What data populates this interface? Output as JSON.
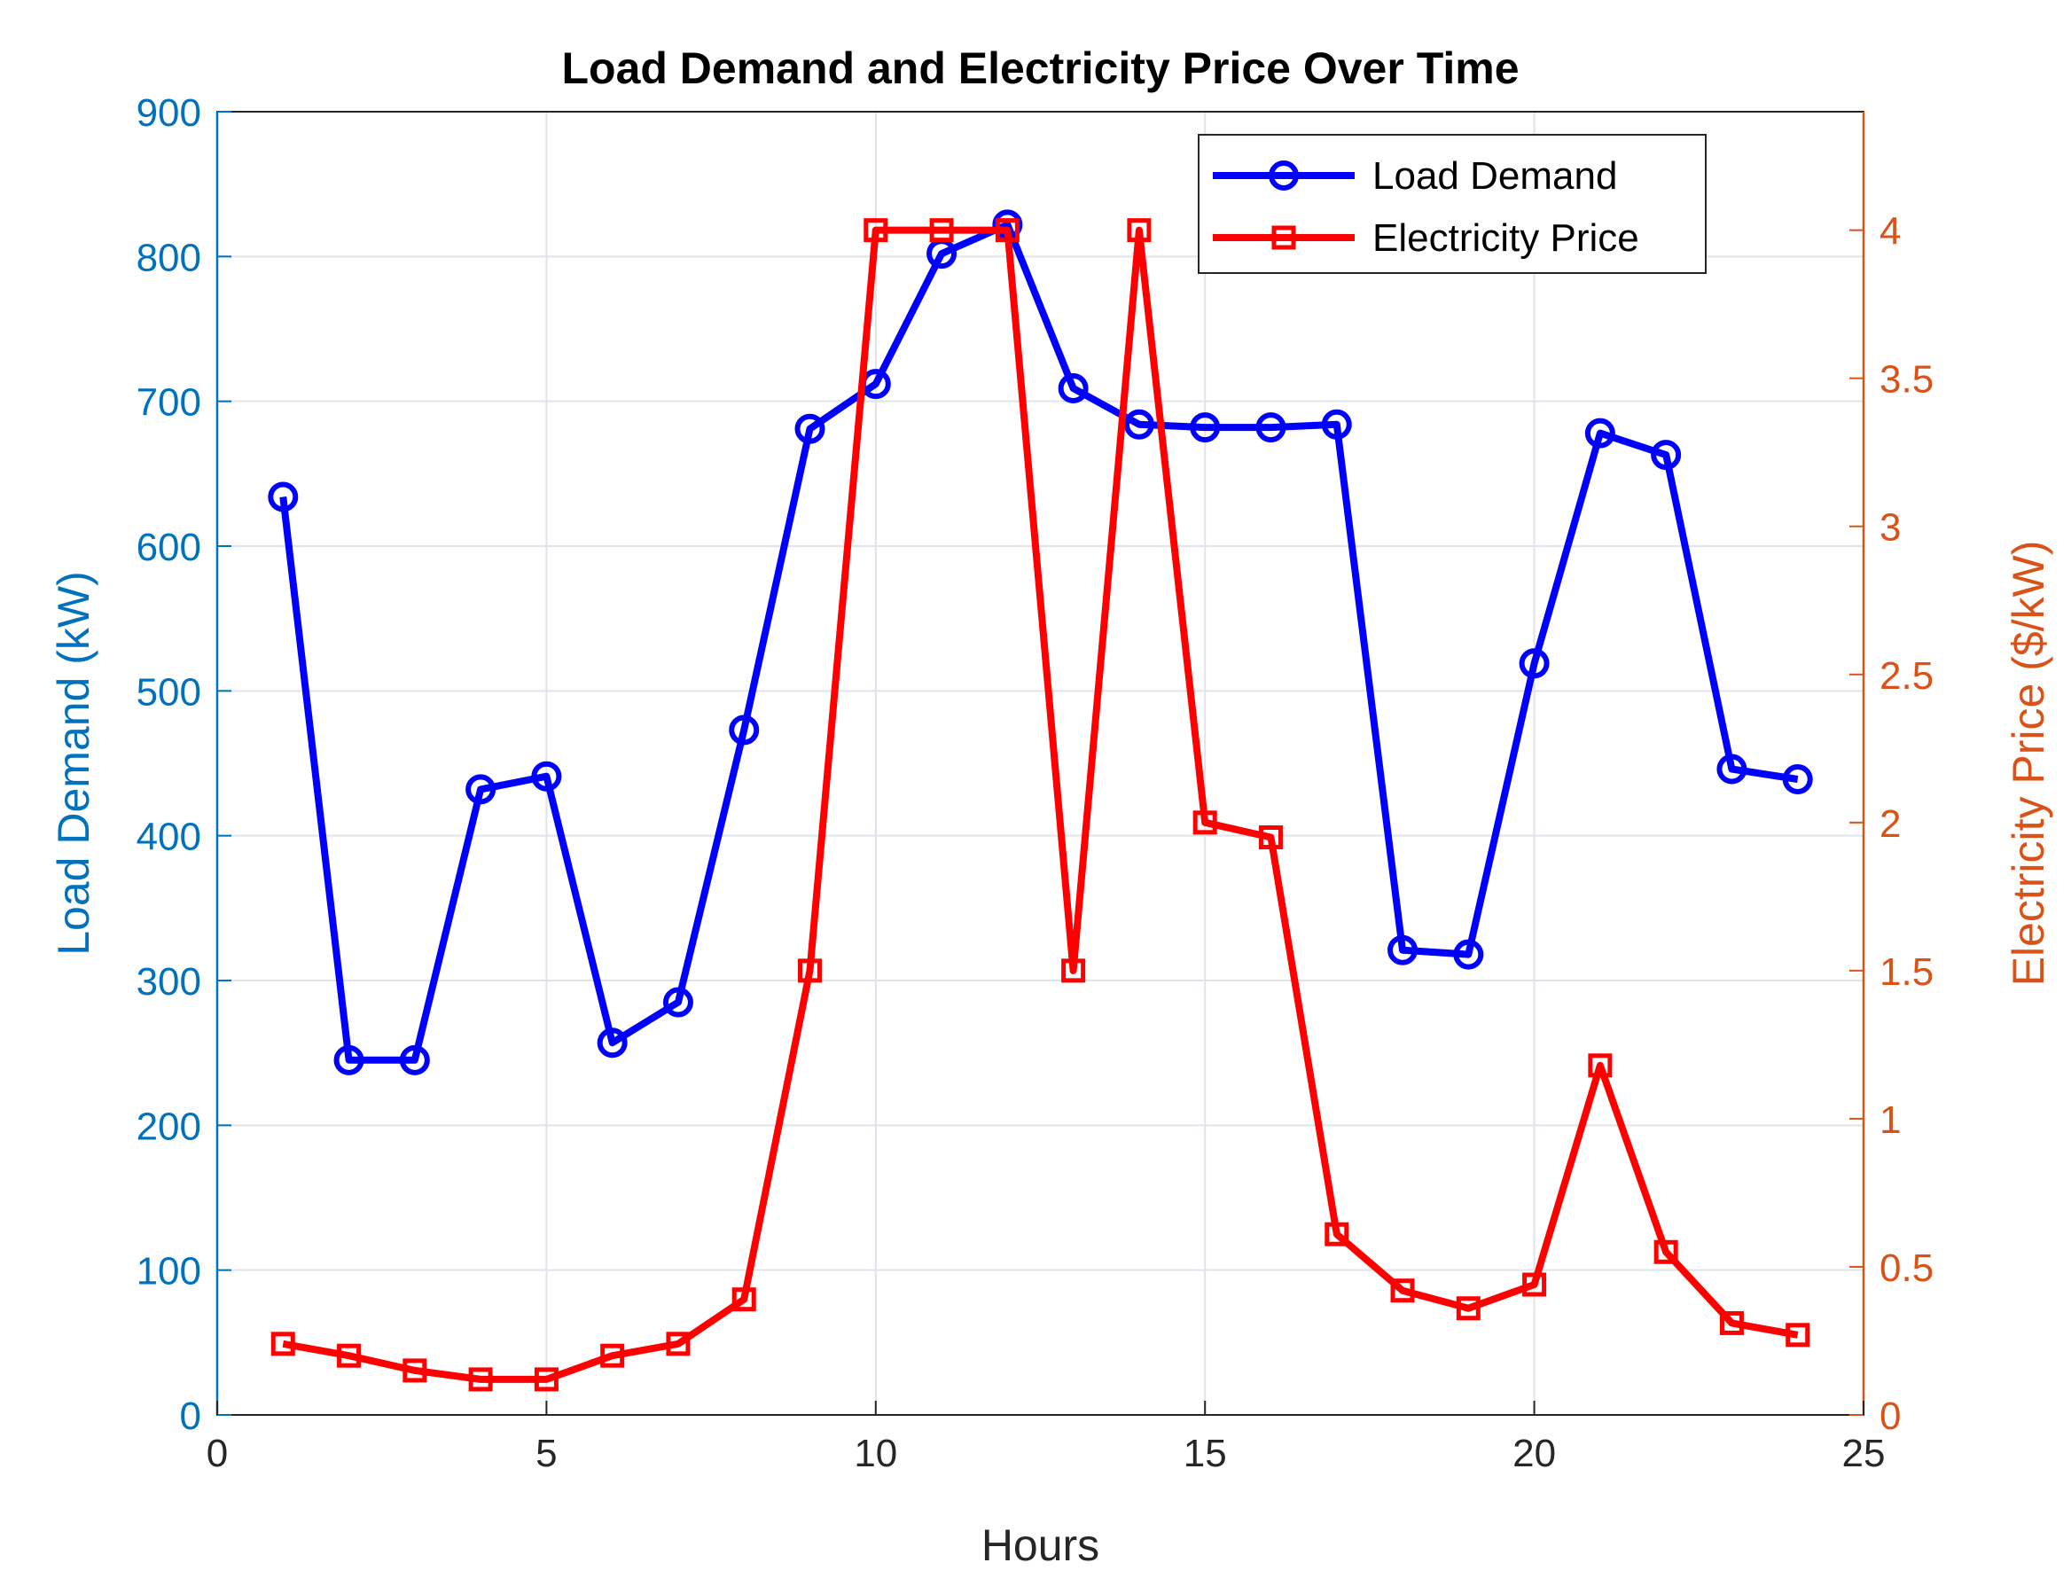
{
  "chart_data": {
    "type": "line",
    "title": "Load Demand and Electricity Price Over Time",
    "xlabel": "Hours",
    "ylabel_left": "Load Demand (kW)",
    "ylabel_right": "Electricity Price ($/kW)",
    "xlim": [
      0,
      25
    ],
    "ylim_left": [
      0,
      900
    ],
    "ylim_right": [
      0,
      4.4
    ],
    "xticks": [
      0,
      5,
      10,
      15,
      20,
      25
    ],
    "yticks_left": [
      0,
      100,
      200,
      300,
      400,
      500,
      600,
      700,
      800,
      900
    ],
    "yticks_right": [
      0,
      0.5,
      1,
      1.5,
      2,
      2.5,
      3,
      3.5,
      4
    ],
    "ytick_labels_right": [
      "0",
      "0.5",
      "1",
      "1.5",
      "2",
      "2.5",
      "3",
      "3.5",
      "4"
    ],
    "grid": true,
    "legend_position": "top-right",
    "x": [
      1,
      2,
      3,
      4,
      5,
      6,
      7,
      8,
      9,
      10,
      11,
      12,
      13,
      14,
      15,
      16,
      17,
      18,
      19,
      20,
      21,
      22,
      23,
      24
    ],
    "series": [
      {
        "name": "Load Demand",
        "axis": "left",
        "color": "#0000ff",
        "marker": "circle",
        "values": [
          634,
          245,
          245,
          432,
          441,
          257,
          285,
          473,
          681,
          712,
          802,
          822,
          709,
          684,
          682,
          682,
          684,
          321,
          318,
          519,
          678,
          663,
          446,
          439
        ]
      },
      {
        "name": "Electricity Price",
        "axis": "right",
        "color": "#ff0000",
        "marker": "square",
        "values": [
          0.24,
          0.2,
          0.15,
          0.12,
          0.12,
          0.2,
          0.24,
          0.39,
          1.5,
          4.0,
          4.0,
          4.0,
          1.5,
          4.0,
          2.0,
          1.95,
          0.61,
          0.42,
          0.36,
          0.44,
          1.18,
          0.55,
          0.31,
          0.27
        ]
      }
    ],
    "colors": {
      "left_axis": "#0072bd",
      "right_axis": "#d95319",
      "grid": "#dfe3ea",
      "axis_line": "#262626"
    }
  }
}
